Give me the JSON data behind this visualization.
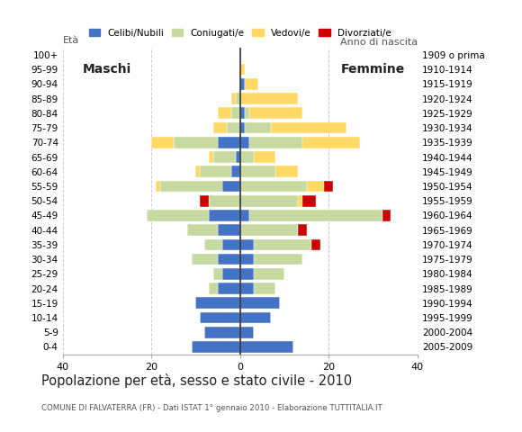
{
  "age_groups": [
    "0-4",
    "5-9",
    "10-14",
    "15-19",
    "20-24",
    "25-29",
    "30-34",
    "35-39",
    "40-44",
    "45-49",
    "50-54",
    "55-59",
    "60-64",
    "65-69",
    "70-74",
    "75-79",
    "80-84",
    "85-89",
    "90-94",
    "95-99",
    "100+"
  ],
  "birth_years": [
    "2005-2009",
    "2000-2004",
    "1995-1999",
    "1990-1994",
    "1985-1989",
    "1980-1984",
    "1975-1979",
    "1970-1974",
    "1965-1969",
    "1960-1964",
    "1955-1959",
    "1950-1954",
    "1945-1949",
    "1940-1944",
    "1935-1939",
    "1930-1934",
    "1925-1929",
    "1920-1924",
    "1915-1919",
    "1910-1914",
    "1909 o prima"
  ],
  "male": {
    "celibi": [
      11,
      8,
      9,
      10,
      5,
      4,
      5,
      4,
      5,
      7,
      0,
      4,
      2,
      1,
      5,
      0,
      0,
      0,
      0,
      0,
      0
    ],
    "coniugati": [
      0,
      0,
      0,
      0,
      2,
      2,
      6,
      4,
      7,
      14,
      7,
      14,
      7,
      5,
      10,
      3,
      2,
      1,
      0,
      0,
      0
    ],
    "vedovi": [
      0,
      0,
      0,
      0,
      0,
      0,
      0,
      0,
      0,
      0,
      0,
      1,
      1,
      1,
      5,
      3,
      3,
      1,
      0,
      0,
      0
    ],
    "divorziati": [
      0,
      0,
      0,
      0,
      0,
      0,
      0,
      0,
      0,
      0,
      2,
      0,
      0,
      0,
      0,
      0,
      0,
      0,
      0,
      0,
      0
    ]
  },
  "female": {
    "celibi": [
      12,
      3,
      7,
      9,
      3,
      3,
      3,
      3,
      0,
      2,
      0,
      0,
      0,
      0,
      2,
      1,
      1,
      0,
      1,
      0,
      0
    ],
    "coniugati": [
      0,
      0,
      0,
      0,
      5,
      7,
      11,
      13,
      13,
      30,
      13,
      15,
      8,
      3,
      12,
      6,
      1,
      0,
      0,
      0,
      0
    ],
    "vedovi": [
      0,
      0,
      0,
      0,
      0,
      0,
      0,
      0,
      0,
      0,
      1,
      4,
      5,
      5,
      13,
      17,
      12,
      13,
      3,
      1,
      0
    ],
    "divorziati": [
      0,
      0,
      0,
      0,
      0,
      0,
      0,
      2,
      2,
      2,
      3,
      2,
      0,
      0,
      0,
      0,
      0,
      0,
      0,
      0,
      0
    ]
  },
  "colors": {
    "celibi": "#4472c4",
    "coniugati": "#c5d9a0",
    "vedovi": "#ffd966",
    "divorziati": "#cc0000"
  },
  "xlim": 40,
  "title": "Popolazione per età, sesso e stato civile - 2010",
  "subtitle": "COMUNE DI FALVATERRA (FR) - Dati ISTAT 1° gennaio 2010 - Elaborazione TUTTITALIA.IT",
  "ylabel_left": "Età",
  "ylabel_right": "Anno di nascita",
  "label_maschi": "Maschi",
  "label_femmine": "Femmine",
  "legend_labels": [
    "Celibi/Nubili",
    "Coniugati/e",
    "Vedovi/e",
    "Divorziati/e"
  ],
  "bg_color": "#ffffff",
  "grid_color": "#cccccc"
}
